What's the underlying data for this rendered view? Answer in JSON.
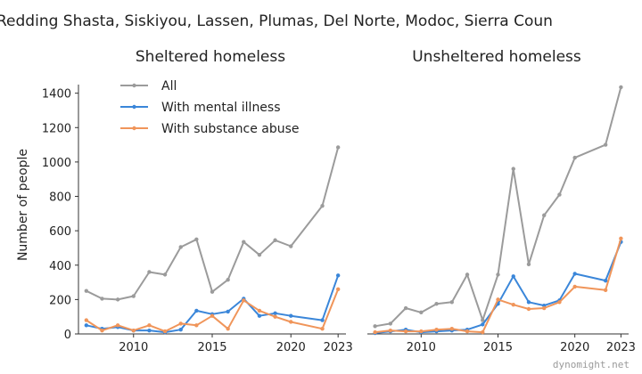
{
  "chart_data": {
    "type": "line",
    "title": "Redding Shasta, Siskiyou, Lassen, Plumas, Del Norte, Modoc, Sierra Coun",
    "ylabel": "Number of people",
    "watermark": "dynomight.net",
    "legend": {
      "placement": "top-left",
      "entries": [
        {
          "name": "All",
          "color": "#9b9b9b"
        },
        {
          "name": "With mental illness",
          "color": "#3a86d9"
        },
        {
          "name": "With substance abuse",
          "color": "#f0955a"
        }
      ]
    },
    "panels": [
      {
        "subtitle": "Sheltered homeless",
        "xlim": [
          2006.5,
          2023.5
        ],
        "ylim": [
          0,
          1450
        ],
        "xticks": [
          2010,
          2015,
          2020,
          2023
        ],
        "yticks": [
          0,
          200,
          400,
          600,
          800,
          1000,
          1200,
          1400
        ],
        "show_y_ticks": true,
        "series": [
          {
            "name": "All",
            "color": "#9b9b9b",
            "x": [
              2007,
              2008,
              2009,
              2010,
              2011,
              2012,
              2013,
              2014,
              2015,
              2016,
              2017,
              2018,
              2019,
              2020,
              2022,
              2023
            ],
            "y": [
              250,
              205,
              200,
              220,
              360,
              345,
              505,
              550,
              245,
              315,
              535,
              460,
              545,
              510,
              745,
              1085
            ]
          },
          {
            "name": "With mental illness",
            "color": "#3a86d9",
            "x": [
              2007,
              2008,
              2009,
              2010,
              2011,
              2012,
              2013,
              2014,
              2015,
              2016,
              2017,
              2018,
              2019,
              2020,
              2022,
              2023
            ],
            "y": [
              50,
              30,
              40,
              20,
              20,
              10,
              25,
              135,
              115,
              130,
              205,
              105,
              120,
              105,
              80,
              340
            ]
          },
          {
            "name": "With substance abuse",
            "color": "#f0955a",
            "x": [
              2007,
              2008,
              2009,
              2010,
              2011,
              2012,
              2013,
              2014,
              2015,
              2016,
              2017,
              2018,
              2019,
              2020,
              2022,
              2023
            ],
            "y": [
              80,
              20,
              50,
              20,
              50,
              15,
              60,
              50,
              105,
              30,
              195,
              135,
              100,
              70,
              30,
              260
            ]
          }
        ]
      },
      {
        "subtitle": "Unsheltered homeless",
        "xlim": [
          2006.5,
          2023.5
        ],
        "ylim": [
          0,
          1450
        ],
        "xticks": [
          2010,
          2015,
          2020,
          2023
        ],
        "yticks": [
          0,
          200,
          400,
          600,
          800,
          1000,
          1200,
          1400
        ],
        "show_y_ticks": false,
        "series": [
          {
            "name": "All",
            "color": "#9b9b9b",
            "x": [
              2007,
              2008,
              2009,
              2010,
              2011,
              2012,
              2013,
              2014,
              2015,
              2016,
              2017,
              2018,
              2019,
              2020,
              2022,
              2023
            ],
            "y": [
              45,
              60,
              150,
              125,
              175,
              185,
              345,
              80,
              345,
              960,
              405,
              690,
              810,
              1025,
              1100,
              1435
            ]
          },
          {
            "name": "With mental illness",
            "color": "#3a86d9",
            "x": [
              2007,
              2008,
              2009,
              2010,
              2011,
              2012,
              2013,
              2014,
              2015,
              2016,
              2017,
              2018,
              2019,
              2020,
              2022,
              2023
            ],
            "y": [
              5,
              15,
              25,
              10,
              15,
              20,
              25,
              55,
              175,
              335,
              185,
              165,
              195,
              350,
              310,
              535
            ]
          },
          {
            "name": "With substance abuse",
            "color": "#f0955a",
            "x": [
              2007,
              2008,
              2009,
              2010,
              2011,
              2012,
              2013,
              2014,
              2015,
              2016,
              2017,
              2018,
              2019,
              2020,
              2022,
              2023
            ],
            "y": [
              10,
              20,
              15,
              15,
              25,
              30,
              15,
              10,
              200,
              170,
              145,
              150,
              185,
              275,
              255,
              555
            ]
          }
        ]
      }
    ]
  }
}
